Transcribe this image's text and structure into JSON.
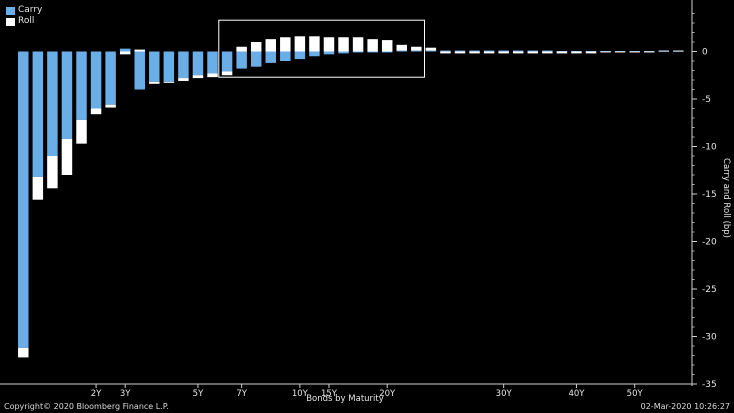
{
  "legend": {
    "items": [
      {
        "name": "Carry",
        "color": "#6aaee8"
      },
      {
        "name": "Roll",
        "color": "#ffffff"
      }
    ]
  },
  "footer": {
    "copyright": "Copyright© 2020 Bloomberg Finance L.P.",
    "timestamp": "02-Mar-2020 10:26:27"
  },
  "chart_data": {
    "type": "bar",
    "stacked": true,
    "xlabel": "Bonds by Maturity",
    "ylabel": "Carry and Roll (bp)",
    "ylim": [
      -35,
      5
    ],
    "yticks": [
      0,
      -5,
      -10,
      -15,
      -20,
      -25,
      -30,
      -35
    ],
    "y_axis_position": "right",
    "xlim": [
      0,
      51
    ],
    "xticks": [
      {
        "label": "2Y",
        "x": 2
      },
      {
        "label": "3Y",
        "x": 3
      },
      {
        "label": "5Y",
        "x": 5.5
      },
      {
        "label": "7Y",
        "x": 7
      },
      {
        "label": "10Y",
        "x": 10
      },
      {
        "label": "15Y",
        "x": 11
      },
      {
        "label": "20Y",
        "x": 13
      },
      {
        "label": "30Y",
        "x": 17
      },
      {
        "label": "40Y",
        "x": 19.5
      },
      {
        "label": "50Y",
        "x": 21.5
      }
    ],
    "grid": false,
    "legend_position": "top-left",
    "highlight_box": {
      "x_range": [
        7,
        14
      ],
      "y_range": [
        -2.7,
        3.3
      ]
    },
    "colors": {
      "Carry": "#6aaee8",
      "Roll": "#ffffff"
    },
    "series": [
      {
        "name": "Carry",
        "values": [
          -31.2,
          -13.2,
          -11.0,
          -9.2,
          -7.2,
          -6.0,
          -5.6,
          0.3,
          -4.0,
          -3.2,
          -3.2,
          -2.8,
          -2.5,
          -2.3,
          -2.1,
          -1.8,
          -1.6,
          -1.2,
          -1.0,
          -0.8,
          -0.5,
          -0.3,
          -0.2,
          -0.1,
          -0.1,
          -0.1,
          0.1,
          0.1,
          0.1,
          0.1,
          0.1,
          0.1,
          0.1,
          0.1,
          0.1,
          0.1,
          0.1,
          0.05,
          0.05,
          0.05,
          0.05,
          0.05,
          0.05,
          0.05,
          0.05,
          0.05
        ]
      },
      {
        "name": "Roll",
        "values": [
          -1.0,
          -2.4,
          -3.4,
          -3.8,
          -2.5,
          -0.6,
          -0.3,
          -0.3,
          0.2,
          -0.2,
          -0.1,
          -0.3,
          -0.3,
          -0.4,
          -0.4,
          0.5,
          1.0,
          1.3,
          1.5,
          1.6,
          1.6,
          1.5,
          1.5,
          1.5,
          1.3,
          1.2,
          0.6,
          0.4,
          0.3,
          -0.2,
          -0.2,
          -0.2,
          -0.2,
          -0.2,
          -0.2,
          -0.2,
          -0.2,
          -0.2,
          -0.2,
          -0.2,
          -0.1,
          -0.1,
          -0.1,
          -0.1,
          0.05,
          0.05
        ]
      }
    ]
  }
}
